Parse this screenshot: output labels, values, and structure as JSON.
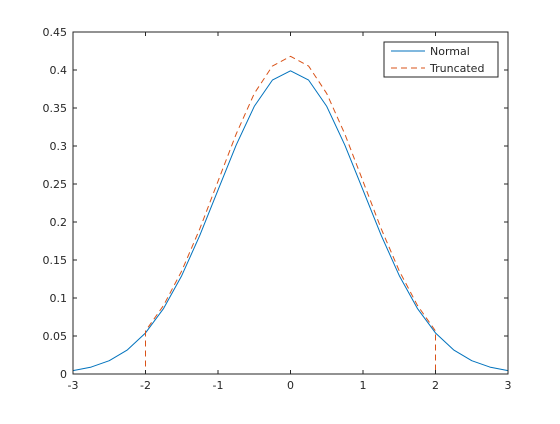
{
  "chart_data": {
    "type": "line",
    "title": "",
    "xlabel": "",
    "ylabel": "",
    "xlim": [
      -3,
      3
    ],
    "ylim": [
      0,
      0.45
    ],
    "x_ticks": [
      -3,
      -2,
      -1,
      0,
      1,
      2,
      3
    ],
    "x_tick_labels": [
      "-3",
      "-2",
      "-1",
      "0",
      "1",
      "2",
      "3"
    ],
    "y_ticks": [
      0,
      0.05,
      0.1,
      0.15,
      0.2,
      0.25,
      0.3,
      0.35,
      0.4,
      0.45
    ],
    "y_tick_labels": [
      "0",
      "0.05",
      "0.1",
      "0.15",
      "0.2",
      "0.25",
      "0.3",
      "0.35",
      "0.4",
      "0.45"
    ],
    "grid": false,
    "legend_position": "top-right",
    "series": [
      {
        "name": "Normal",
        "style": "solid",
        "color": "#0072bd",
        "x": [
          -3,
          -2.75,
          -2.5,
          -2.25,
          -2,
          -1.75,
          -1.5,
          -1.25,
          -1,
          -0.75,
          -0.5,
          -0.25,
          0,
          0.25,
          0.5,
          0.75,
          1,
          1.25,
          1.5,
          1.75,
          2,
          2.25,
          2.5,
          2.75,
          3
        ],
        "y": [
          0.0044,
          0.0091,
          0.0175,
          0.0317,
          0.054,
          0.0863,
          0.1295,
          0.1826,
          0.242,
          0.3011,
          0.3521,
          0.3867,
          0.3989,
          0.3867,
          0.3521,
          0.3011,
          0.242,
          0.1826,
          0.1295,
          0.0863,
          0.054,
          0.0317,
          0.0175,
          0.0091,
          0.0044
        ]
      },
      {
        "name": "Truncated",
        "style": "dashed",
        "color": "#d95319",
        "x": [
          -3,
          -2,
          -2,
          -1.75,
          -1.5,
          -1.25,
          -1,
          -0.75,
          -0.5,
          -0.25,
          0,
          0.25,
          0.5,
          0.75,
          1,
          1.25,
          1.5,
          1.75,
          2,
          2,
          3
        ],
        "y": [
          0,
          0,
          0.0566,
          0.0904,
          0.1357,
          0.1913,
          0.2536,
          0.3156,
          0.369,
          0.4052,
          0.418,
          0.4052,
          0.369,
          0.3156,
          0.2536,
          0.1913,
          0.1357,
          0.0904,
          0.0566,
          0,
          0
        ]
      }
    ]
  }
}
